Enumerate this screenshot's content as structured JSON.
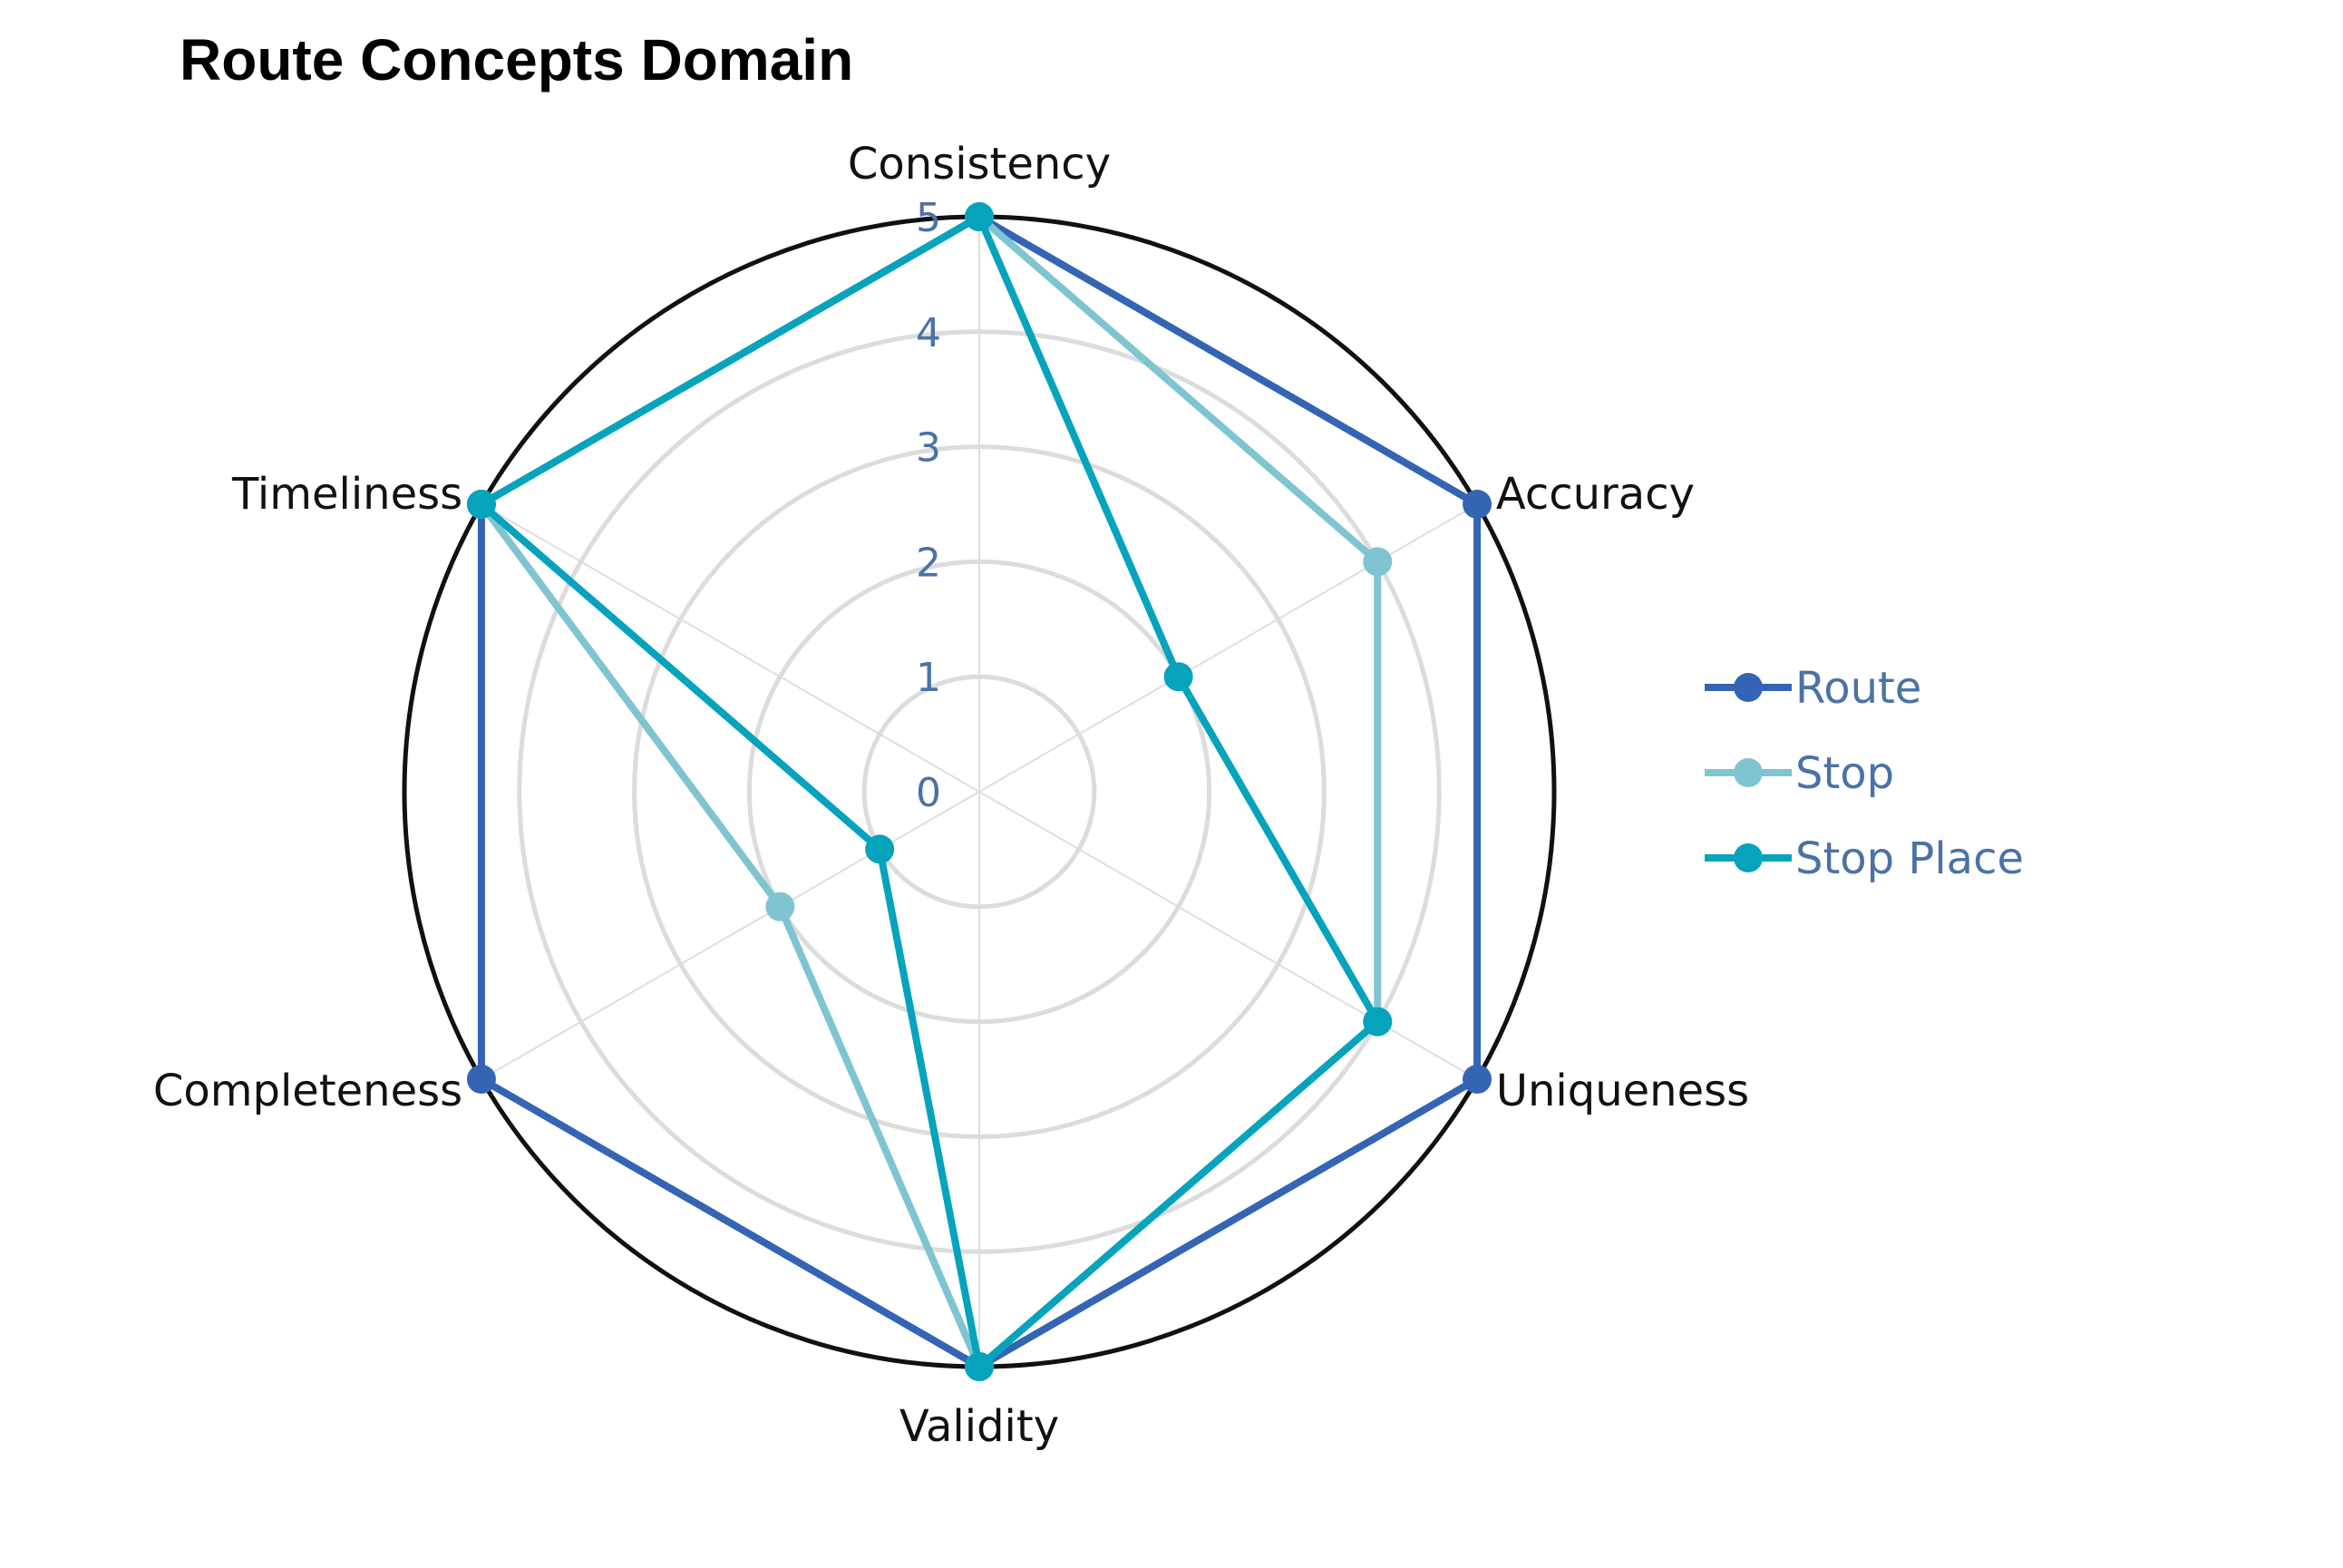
{
  "chart_data": {
    "type": "radar",
    "title": "Route Concepts Domain",
    "axes": [
      "Consistency",
      "Accuracy",
      "Uniqueness",
      "Validity",
      "Completeness",
      "Timeliness"
    ],
    "rlim": [
      0,
      5
    ],
    "r_ticks": [
      "0",
      "1",
      "2",
      "3",
      "4",
      "5"
    ],
    "grid": true,
    "legend_position": "right",
    "series": [
      {
        "name": "Route",
        "color": "#3465b4",
        "values": [
          5,
          5,
          5,
          5,
          5,
          5
        ]
      },
      {
        "name": "Stop",
        "color": "#7fc4d1",
        "values": [
          5,
          4,
          4,
          5,
          2,
          5
        ]
      },
      {
        "name": "Stop Place",
        "color": "#06a3bd",
        "values": [
          5,
          2,
          4,
          5,
          1,
          5
        ]
      }
    ]
  }
}
